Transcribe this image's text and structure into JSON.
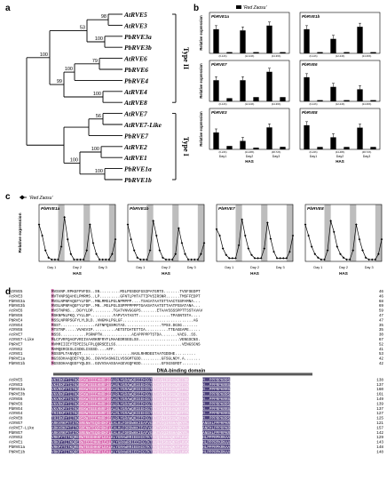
{
  "panel_letters": {
    "a": "a",
    "b": "b",
    "c": "c",
    "d": "d"
  },
  "tree": {
    "taxa": [
      "AtRVE5",
      "AtRVE3",
      "PbRVE3a",
      "PbRVE3b",
      "AtRVE6",
      "PbRVE6",
      "PbRVE4",
      "AtRVE4",
      "AtRVE8",
      "AtRVE7",
      "AtRVE7-Like",
      "PbRVE7",
      "AtRVE2",
      "AtRVE1",
      "PbRVE1a",
      "PbRVE1b"
    ],
    "bootstraps": [
      "98",
      "53",
      "100",
      "79",
      "100",
      "99",
      "100",
      "100",
      "56",
      "100",
      "100",
      "100"
    ],
    "group_labels": [
      "Type II",
      "Type I"
    ]
  },
  "panel_b": {
    "legend": "'Red Zaosu'",
    "ylabel": "Relative expression",
    "xticks": [
      "0",
      "3",
      "6",
      "9",
      "12",
      "15",
      "18",
      "21",
      "24",
      "27",
      "30",
      "33"
    ],
    "day_labels": [
      "Day1",
      "Day2",
      "Day3"
    ],
    "xlabel": "HAS",
    "tick_labels_top": [
      "(0-12h)",
      "(12-24h)",
      "(24-36h)"
    ],
    "tick_labels_bottom": [
      "(0-24h)",
      "(24-48h)",
      "(48-72h)"
    ],
    "subplot_titles": [
      "PbRVE1a",
      "PbRVE1b",
      "PbRVE7",
      "PbRVE6",
      "PbRVE3",
      "PbRVE8"
    ]
  },
  "panel_c": {
    "legend": "'Red Zaosu'",
    "ylabel": "Relative expression",
    "xlabel": "HAS",
    "day_labels": [
      "Day 1",
      "Day 2",
      "Day 3"
    ],
    "subplot_titles": [
      "PbRVE1a",
      "PbRVE1b",
      "PbRVE7",
      "PbRVE8"
    ]
  },
  "chart_data": [
    {
      "type": "bar",
      "panel": "b",
      "subplot": "PbRVE1a",
      "categories": [
        "0",
        "3",
        "6",
        "9",
        "12",
        "15"
      ],
      "values": [
        1.0,
        0.05,
        0.95,
        0.05,
        1.15,
        0.05
      ],
      "ylim": [
        0,
        1.4
      ]
    },
    {
      "type": "bar",
      "panel": "b",
      "subplot": "PbRVE1b",
      "categories": [
        "0",
        "3",
        "6",
        "9",
        "12",
        "15"
      ],
      "values": [
        1.0,
        0.05,
        0.6,
        0.05,
        1.1,
        0.05
      ],
      "ylim": [
        0,
        1.4
      ]
    },
    {
      "type": "bar",
      "panel": "b",
      "subplot": "PbRVE7",
      "categories": [
        "0",
        "3",
        "6",
        "9",
        "12",
        "15"
      ],
      "values": [
        1.0,
        0.15,
        1.0,
        0.2,
        1.4,
        0.2
      ],
      "ylim": [
        0,
        1.6
      ]
    },
    {
      "type": "bar",
      "panel": "b",
      "subplot": "PbRVE6",
      "categories": [
        "0",
        "3",
        "6",
        "9",
        "12",
        "15"
      ],
      "values": [
        1.0,
        0.05,
        0.6,
        0.05,
        0.5,
        0.05
      ],
      "ylim": [
        0,
        1.4
      ]
    },
    {
      "type": "bar",
      "panel": "b",
      "subplot": "PbRVE3",
      "categories": [
        "0",
        "3",
        "6",
        "9",
        "12",
        "15"
      ],
      "values": [
        1.0,
        0.2,
        0.5,
        0.1,
        1.3,
        0.15
      ],
      "ylim": [
        0,
        2.0
      ]
    },
    {
      "type": "bar",
      "panel": "b",
      "subplot": "PbRVE8",
      "categories": [
        "0",
        "3",
        "6",
        "9",
        "12",
        "15"
      ],
      "values": [
        1.0,
        0.1,
        0.5,
        0.1,
        0.9,
        0.1
      ],
      "ylim": [
        0,
        1.4
      ]
    },
    {
      "type": "line",
      "panel": "c",
      "subplot": "PbRVE1a",
      "x": [
        0,
        3,
        6,
        9,
        12,
        15,
        18,
        21,
        24,
        27,
        30,
        33,
        36,
        39,
        42,
        45,
        48,
        51,
        54,
        57,
        60,
        63,
        66,
        69,
        72
      ],
      "values": [
        1.0,
        0.7,
        0.3,
        0.1,
        0.05,
        0.05,
        0.05,
        0.4,
        1.2,
        0.6,
        0.2,
        0.05,
        0.05,
        0.05,
        0.05,
        0.3,
        1.0,
        0.5,
        0.2,
        0.05,
        0.05,
        0.05,
        0.05,
        0.2,
        0.6
      ],
      "ylim": [
        0,
        1.4
      ]
    },
    {
      "type": "line",
      "panel": "c",
      "subplot": "PbRVE1b",
      "x": [
        0,
        3,
        6,
        9,
        12,
        15,
        18,
        21,
        24,
        27,
        30,
        33,
        36,
        39,
        42,
        45,
        48,
        51,
        54,
        57,
        60,
        63,
        66,
        69,
        72
      ],
      "values": [
        1.0,
        0.6,
        0.3,
        0.1,
        0.05,
        0.05,
        0.05,
        0.3,
        1.1,
        0.7,
        0.3,
        0.1,
        0.05,
        0.05,
        0.05,
        0.2,
        0.9,
        0.5,
        0.2,
        0.05,
        0.05,
        0.05,
        0.05,
        0.2,
        0.5
      ],
      "ylim": [
        0,
        1.4
      ]
    },
    {
      "type": "line",
      "panel": "c",
      "subplot": "PbRVE7",
      "x": [
        0,
        3,
        6,
        9,
        12,
        15,
        18,
        21,
        24,
        27,
        30,
        33,
        36,
        39,
        42,
        45,
        48,
        51,
        54,
        57,
        60,
        63,
        66,
        69,
        72
      ],
      "values": [
        1.0,
        0.8,
        0.4,
        0.2,
        0.1,
        0.1,
        0.1,
        0.5,
        1.3,
        0.8,
        0.4,
        0.2,
        0.1,
        0.1,
        0.1,
        0.4,
        1.2,
        0.7,
        0.3,
        0.1,
        0.1,
        0.1,
        0.1,
        0.3,
        0.8
      ],
      "ylim": [
        0,
        1.6
      ]
    },
    {
      "type": "line",
      "panel": "c",
      "subplot": "PbRVE8",
      "x": [
        0,
        3,
        6,
        9,
        12,
        15,
        18,
        21,
        24,
        27,
        30,
        33,
        36,
        39,
        42,
        45,
        48,
        51,
        54,
        57,
        60,
        63,
        66,
        69,
        72
      ],
      "values": [
        1.0,
        0.7,
        0.4,
        0.2,
        0.1,
        0.05,
        0.05,
        0.3,
        1.1,
        0.8,
        0.4,
        0.2,
        0.1,
        0.05,
        0.05,
        0.3,
        1.0,
        0.6,
        0.3,
        0.1,
        0.05,
        0.05,
        0.05,
        0.2,
        0.6
      ],
      "ylim": [
        0,
        1.4
      ]
    }
  ],
  "alignment": {
    "names_top": [
      "AtRVE5",
      "AtRVE3",
      "PbRVE3a",
      "PbRVE3b",
      "AtRVE6",
      "PbRVE6",
      "PbRVE4",
      "AtRVE4",
      "AtRVE8",
      "AtRVE7",
      "AtRVE7-Like",
      "PbRVE7",
      "AtRVE2",
      "AtRVE1",
      "PbRVE1a",
      "PbRVE1b"
    ],
    "seqs_top": [
      "MVSVNP.RPKGFPVFDS..SN.........MSLPSSDGFGSIPATGRTS.......TVSFSEDPT",
      "MVTVNPSQAHCLPMRMS..LP.........GFNTLPHTATTIPVSIRSNR......TMSFFEDPT",
      "MVSLNPNPAQGFYLFDP..MNLMMGLPGLNPMPPP....TSAGATAATSTTAACTSSPAMNA...",
      "MVSLNPNPAQGFYLFDP..MN..MGLPGLSSPPPPPPPTGAASATAATSTTAATPSSATANA...",
      "MVSTNPNS...DGYYLDP.........TGATVNVGGGPS.......ETAAVSSSSPPTTSSTAVAV",
      "MSKNPNLPKQ.YYLLDP..........FAPVTATASTT..............TPASNTSTA....",
      "MSSLNPRPSGFYLYLDLD..VNGMALPGLGF...............................AG",
      "MSST...............ASTNPQSSMGTAS................TPSS.DGSG.......",
      "MTSTNP.....VVAEVIP..........AETSTDATETTIA..........TTEAGEAPE.....",
      "MSSS...........PSRNPTN.............AEAPPPPPTSTDA.......VAEG..SS.",
      "MLCFVRFQAGFVRIIVAARKRFRYFLMAAEDRSEELSS..................VENGSCNS.",
      "MVMMIIIEYTEPEISLFPLQDRSEELSS.............................VENGSCNS",
      "MAMQERCESLCSDELISSSD....AFF.",
      "MSSSPLTANVQGT......................NASLRHRDEETAATGDDHE.........",
      "MGSSDHAAQDEFYQLDG..DGVVSASNGILVSSGMTGDD.........GFSGLNDY.A.......",
      "MGSSDHAAQEEFYQLDS..GGVVSAASSAAGEVGQFKDD.........GFSGSGRDT........"
    ],
    "nums_top": [
      "46",
      "46",
      "68",
      "69",
      "59",
      "47",
      "47",
      "35",
      "35",
      "30",
      "67",
      "52",
      "41",
      "53",
      "42",
      "42"
    ],
    "domain_label": "DNA-binding domain",
    "names_bottom": [
      "AtRVE5",
      "AtRVE3",
      "PbRVE3a",
      "PbRVE3b",
      "AtRVE6",
      "PbRVE6",
      "PbRVE4",
      "AtRVE4",
      "AtRVE8",
      "AtRVE7",
      "AtRVE7-Like",
      "PbRVE7",
      "AtRVE2",
      "AtRVE1",
      "PbRVE1a",
      "PbRVE1b"
    ],
    "seqs_bottom": [
      "VKTRKPYTITKQREKWTEEEHNRFIEALRLYGRAWQRIEEHIGTKTAVQIRSHAQKFFNK...ANEH..PPPRPKRRSAHPWPENVA",
      "VKIRKPYTITKQREKWTEEEHNRFIEALRLYGRAWQRIEEHIGTKTAVQIRSHAQKFFTK...TKEH..PPPRPKRRSAHPWPAPK.",
      "VKVRKPYTITKQREKWTEEEHNRFIEALRLYGRAWQRIEEHIGTKTAVQIRSHAQKFFTK...TSEH..PPPRPKRRSAHPWPQNVA",
      "VKVRKPYTITKQREKWTEEEHNRFIEALRLYGRAWQRIEEHIGTKTAVQIRSHAQKFFTK...TSEH..PPPRPKRRSAHPWPQNVA",
      "VKVRKPYTITKQREKWTEEEHNRFIEALRLYGRAWQRIEEHIGTKTAVQIRSHAQKFFTK...TSEH..PPPRPKRRSAHPWPQNVA",
      "VKVRKPYTITKQREKWTEEEHNRFIEALRLYGRAWQRIEEHIGTKTAVQIRSHAQKFFSK...TSEH..PPPRPKRRSAHPWPQNVA",
      "VKVRKPYTITKQREKWTEEEHNRFIEALRLYGRAWQRIEEHIGTKTAVQIRSHAQKFFSK...TLEH..PPPRPKRRSAHPWPQNVA",
      "TRIRKPYTITKQRERWTEEEHNRFIEALRLYGRAWQKIEEHIGTKTAVQIRSHAQKFFTK...TGEH..PPPRPKRRSAHPWPAPK.",
      "TRIRKPYTITKQRERWTEEEHNRFIEALRLYGRAWQKIEEHIGTKTAVQIRSHAQKFFTK...TLAH..PPPRPKRRSAHPWPAPK.",
      "ARKVRKPYTITKSRENWTEQEHDKFLEALHLFDRDWKKIEAFVGSKTVIQIRSHAQKYFLKVQKSGANEHLPPPRPKRKAAHPYPQKAPK",
      "ARKVRKPYTITKSRENWTEQEHDKFLEALHLFDRDWKKIEAFVGSKTVIQIRSHAQKYFLKVQKSGANEHLPPPRPKRKAAHPYPQKAPK",
      "ARKVRKPYTITKSRENWTEQEHDKFLEALHLFDRDWKKIEAFVGSKTVIQIRSHAQKYFLKVQKSGANEHLPPPRPKRKAAHPYPQKAPK",
      "VRKPYTITKQRERWTEEEHKKFLEALKLYGRAWRRIEEHIGTKTAVQIRSHAQKYFLKVQKSGTSEHLPPPRPKRKAAHPYPQKAPK",
      "VRKPYTITKQRERWTEEEHKKFLEALKLYGRAWRRIEEHIGTKTAVQIRSHAQKYFLKVQKSGTSEHLPPPRPKRKAAHPYPQKAPK",
      "VRKPYTITKQRERWTEEEHKKFLEALKLYGRAWRRIEEHIGTKTAVQIRSHAQKYFLKVQKSGTSEHLPPPRPKRKAAHPYPQKAPK",
      "VRKPYTITKQRERWTEEEHKKFLEALKLYGRAWRRIEEHIGTKTAVQIRSHAQKYFLKVQKSGTSEHLPPPRPKRKAAHPYPQKAPK"
    ],
    "nums_bottom": [
      "138",
      "137",
      "160",
      "161",
      "149",
      "139",
      "137",
      "127",
      "125",
      "121",
      "157",
      "142",
      "129",
      "143",
      "148",
      "148"
    ]
  },
  "colors": {
    "bar": "#000000",
    "shade": "#bdbdbd",
    "dark_box": "#2b1d63",
    "pink_box": "#d04ea0",
    "light_box": "#e8b7de"
  }
}
